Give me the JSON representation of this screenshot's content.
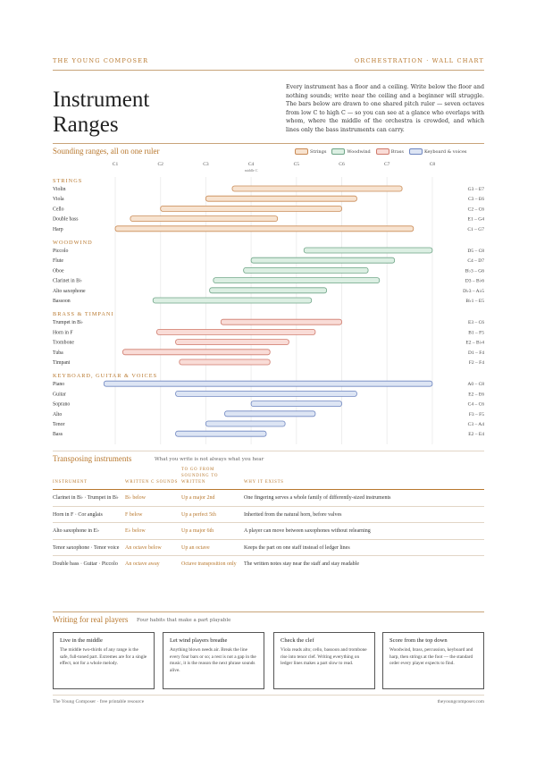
{
  "header": {
    "brand": "THE YOUNG COMPOSER",
    "section": "ORCHESTRATION · WALL CHART"
  },
  "title_line1": "Instrument",
  "title_line2": "Ranges",
  "intro": "Every instrument has a floor and a ceiling. Write below the floor and nothing sounds; write near the ceiling and a beginner will struggle. The bars below are drawn to one shared pitch ruler — seven octaves from low C to high C — so you can see at a glance who overlaps with whom, where the middle of the orchestra is crowded, and which lines only the bass instruments can carry.",
  "ranges_heading": "Sounding ranges, all on one ruler",
  "legend": [
    {
      "label": "Strings",
      "family": "strings"
    },
    {
      "label": "Woodwind",
      "family": "woodwind"
    },
    {
      "label": "Brass",
      "family": "brass"
    },
    {
      "label": "Keyboard & voices",
      "family": "keys"
    }
  ],
  "colors": {
    "strings": {
      "fill": "#f7e3d0",
      "stroke": "#c98a55"
    },
    "woodwind": {
      "fill": "#dcefe3",
      "stroke": "#6fa587"
    },
    "brass": {
      "fill": "#f9dcd7",
      "stroke": "#cf7a6c"
    },
    "keys": {
      "fill": "#dde5f4",
      "stroke": "#6f86c0"
    },
    "accent": "#b8782e"
  },
  "chart_data": {
    "type": "range-bar",
    "axis_ticks": [
      "C1",
      "C2",
      "C3",
      "C4",
      "C5",
      "C6",
      "C7",
      "C8"
    ],
    "axis_note": "middle C",
    "axis_unit": "semitones from C1",
    "groups": [
      {
        "name": "STRINGS",
        "family": "strings",
        "instruments": [
          {
            "name": "Violin",
            "range": "G3 – E7",
            "low": 31,
            "high": 76
          },
          {
            "name": "Viola",
            "range": "C3 – E6",
            "low": 24,
            "high": 64
          },
          {
            "name": "Cello",
            "range": "C2 – C6",
            "low": 12,
            "high": 60
          },
          {
            "name": "Double bass",
            "range": "E1 – G4",
            "low": 4,
            "high": 43
          },
          {
            "name": "Harp",
            "range": "C1 – G7",
            "low": 0,
            "high": 79
          }
        ]
      },
      {
        "name": "WOODWIND",
        "family": "woodwind",
        "instruments": [
          {
            "name": "Piccolo",
            "range": "D5 – C8",
            "low": 50,
            "high": 84
          },
          {
            "name": "Flute",
            "range": "C4 – D7",
            "low": 36,
            "high": 74
          },
          {
            "name": "Oboe",
            "range": "B♭3 – G6",
            "low": 34,
            "high": 67
          },
          {
            "name": "Clarinet in B♭",
            "range": "D3 – B♭6",
            "low": 26,
            "high": 70
          },
          {
            "name": "Alto saxophone",
            "range": "D♭3 – A♭5",
            "low": 25,
            "high": 56
          },
          {
            "name": "Bassoon",
            "range": "B♭1 – E5",
            "low": 10,
            "high": 52
          }
        ]
      },
      {
        "name": "BRASS & TIMPANI",
        "family": "brass",
        "instruments": [
          {
            "name": "Trumpet in B♭",
            "range": "E3 – C6",
            "low": 28,
            "high": 60
          },
          {
            "name": "Horn in F",
            "range": "B1 – F5",
            "low": 11,
            "high": 53
          },
          {
            "name": "Trombone",
            "range": "E2 – B♭4",
            "low": 16,
            "high": 46
          },
          {
            "name": "Tuba",
            "range": "D1 – F4",
            "low": 2,
            "high": 41
          },
          {
            "name": "Timpani",
            "range": "F2 – F4",
            "low": 17,
            "high": 41
          }
        ]
      },
      {
        "name": "KEYBOARD, GUITAR & VOICES",
        "family": "keys",
        "instruments": [
          {
            "name": "Piano",
            "range": "A0 – C8",
            "low": -3,
            "high": 84
          },
          {
            "name": "Guitar",
            "range": "E2 – E6",
            "low": 16,
            "high": 64
          },
          {
            "name": "Soprano",
            "range": "C4 – C6",
            "low": 36,
            "high": 60
          },
          {
            "name": "Alto",
            "range": "F3 – F5",
            "low": 29,
            "high": 53
          },
          {
            "name": "Tenor",
            "range": "C3 – A4",
            "low": 24,
            "high": 45
          },
          {
            "name": "Bass",
            "range": "E2 – E4",
            "low": 16,
            "high": 40
          }
        ]
      }
    ]
  },
  "transposing": {
    "heading": "Transposing instruments",
    "subheading": "What you write is not always what you hear",
    "columns": [
      "INSTRUMENT",
      "WRITTEN C SOUNDS",
      "TO GO FROM SOUNDING TO WRITTEN",
      "WHY IT EXISTS"
    ],
    "rows": [
      [
        "Clarinet in B♭ · Trumpet in B♭",
        "B♭ below",
        "Up a major 2nd",
        "One fingering serves a whole family of differently-sized instruments"
      ],
      [
        "Horn in F · Cor anglais",
        "F below",
        "Up a perfect 5th",
        "Inherited from the natural horn, before valves"
      ],
      [
        "Alto saxophone in E♭",
        "E♭ below",
        "Up a major 6th",
        "A player can move between saxophones without relearning"
      ],
      [
        "Tenor saxophone · Tenor voice",
        "An octave below",
        "Up an octave",
        "Keeps the part on one staff instead of ledger lines"
      ],
      [
        "Double bass · Guitar · Piccolo",
        "An octave away",
        "Octave transposition only",
        "The written notes stay near the staff and stay readable"
      ]
    ]
  },
  "tips": {
    "heading": "Writing for real players",
    "subheading": "Four habits that make a part playable",
    "cards": [
      {
        "title": "Live in the middle",
        "body": "The middle two-thirds of any range is the safe, full-toned part. Extremes are for a single effect, not for a whole melody."
      },
      {
        "title": "Let wind players breathe",
        "body": "Anything blown needs air. Break the line every four bars or so; a rest is not a gap in the music, it is the reason the next phrase sounds alive."
      },
      {
        "title": "Check the clef",
        "body": "Viola reads alto; cello, bassoon and trombone rise into tenor clef. Writing everything on ledger lines makes a part slow to read."
      },
      {
        "title": "Score from the top down",
        "body": "Woodwind, brass, percussion, keyboard and harp, then strings at the foot — the standard order every player expects to find."
      }
    ]
  },
  "footer": {
    "left": "The Young Composer · free printable resource",
    "right": "theyoungcomposer.com"
  }
}
